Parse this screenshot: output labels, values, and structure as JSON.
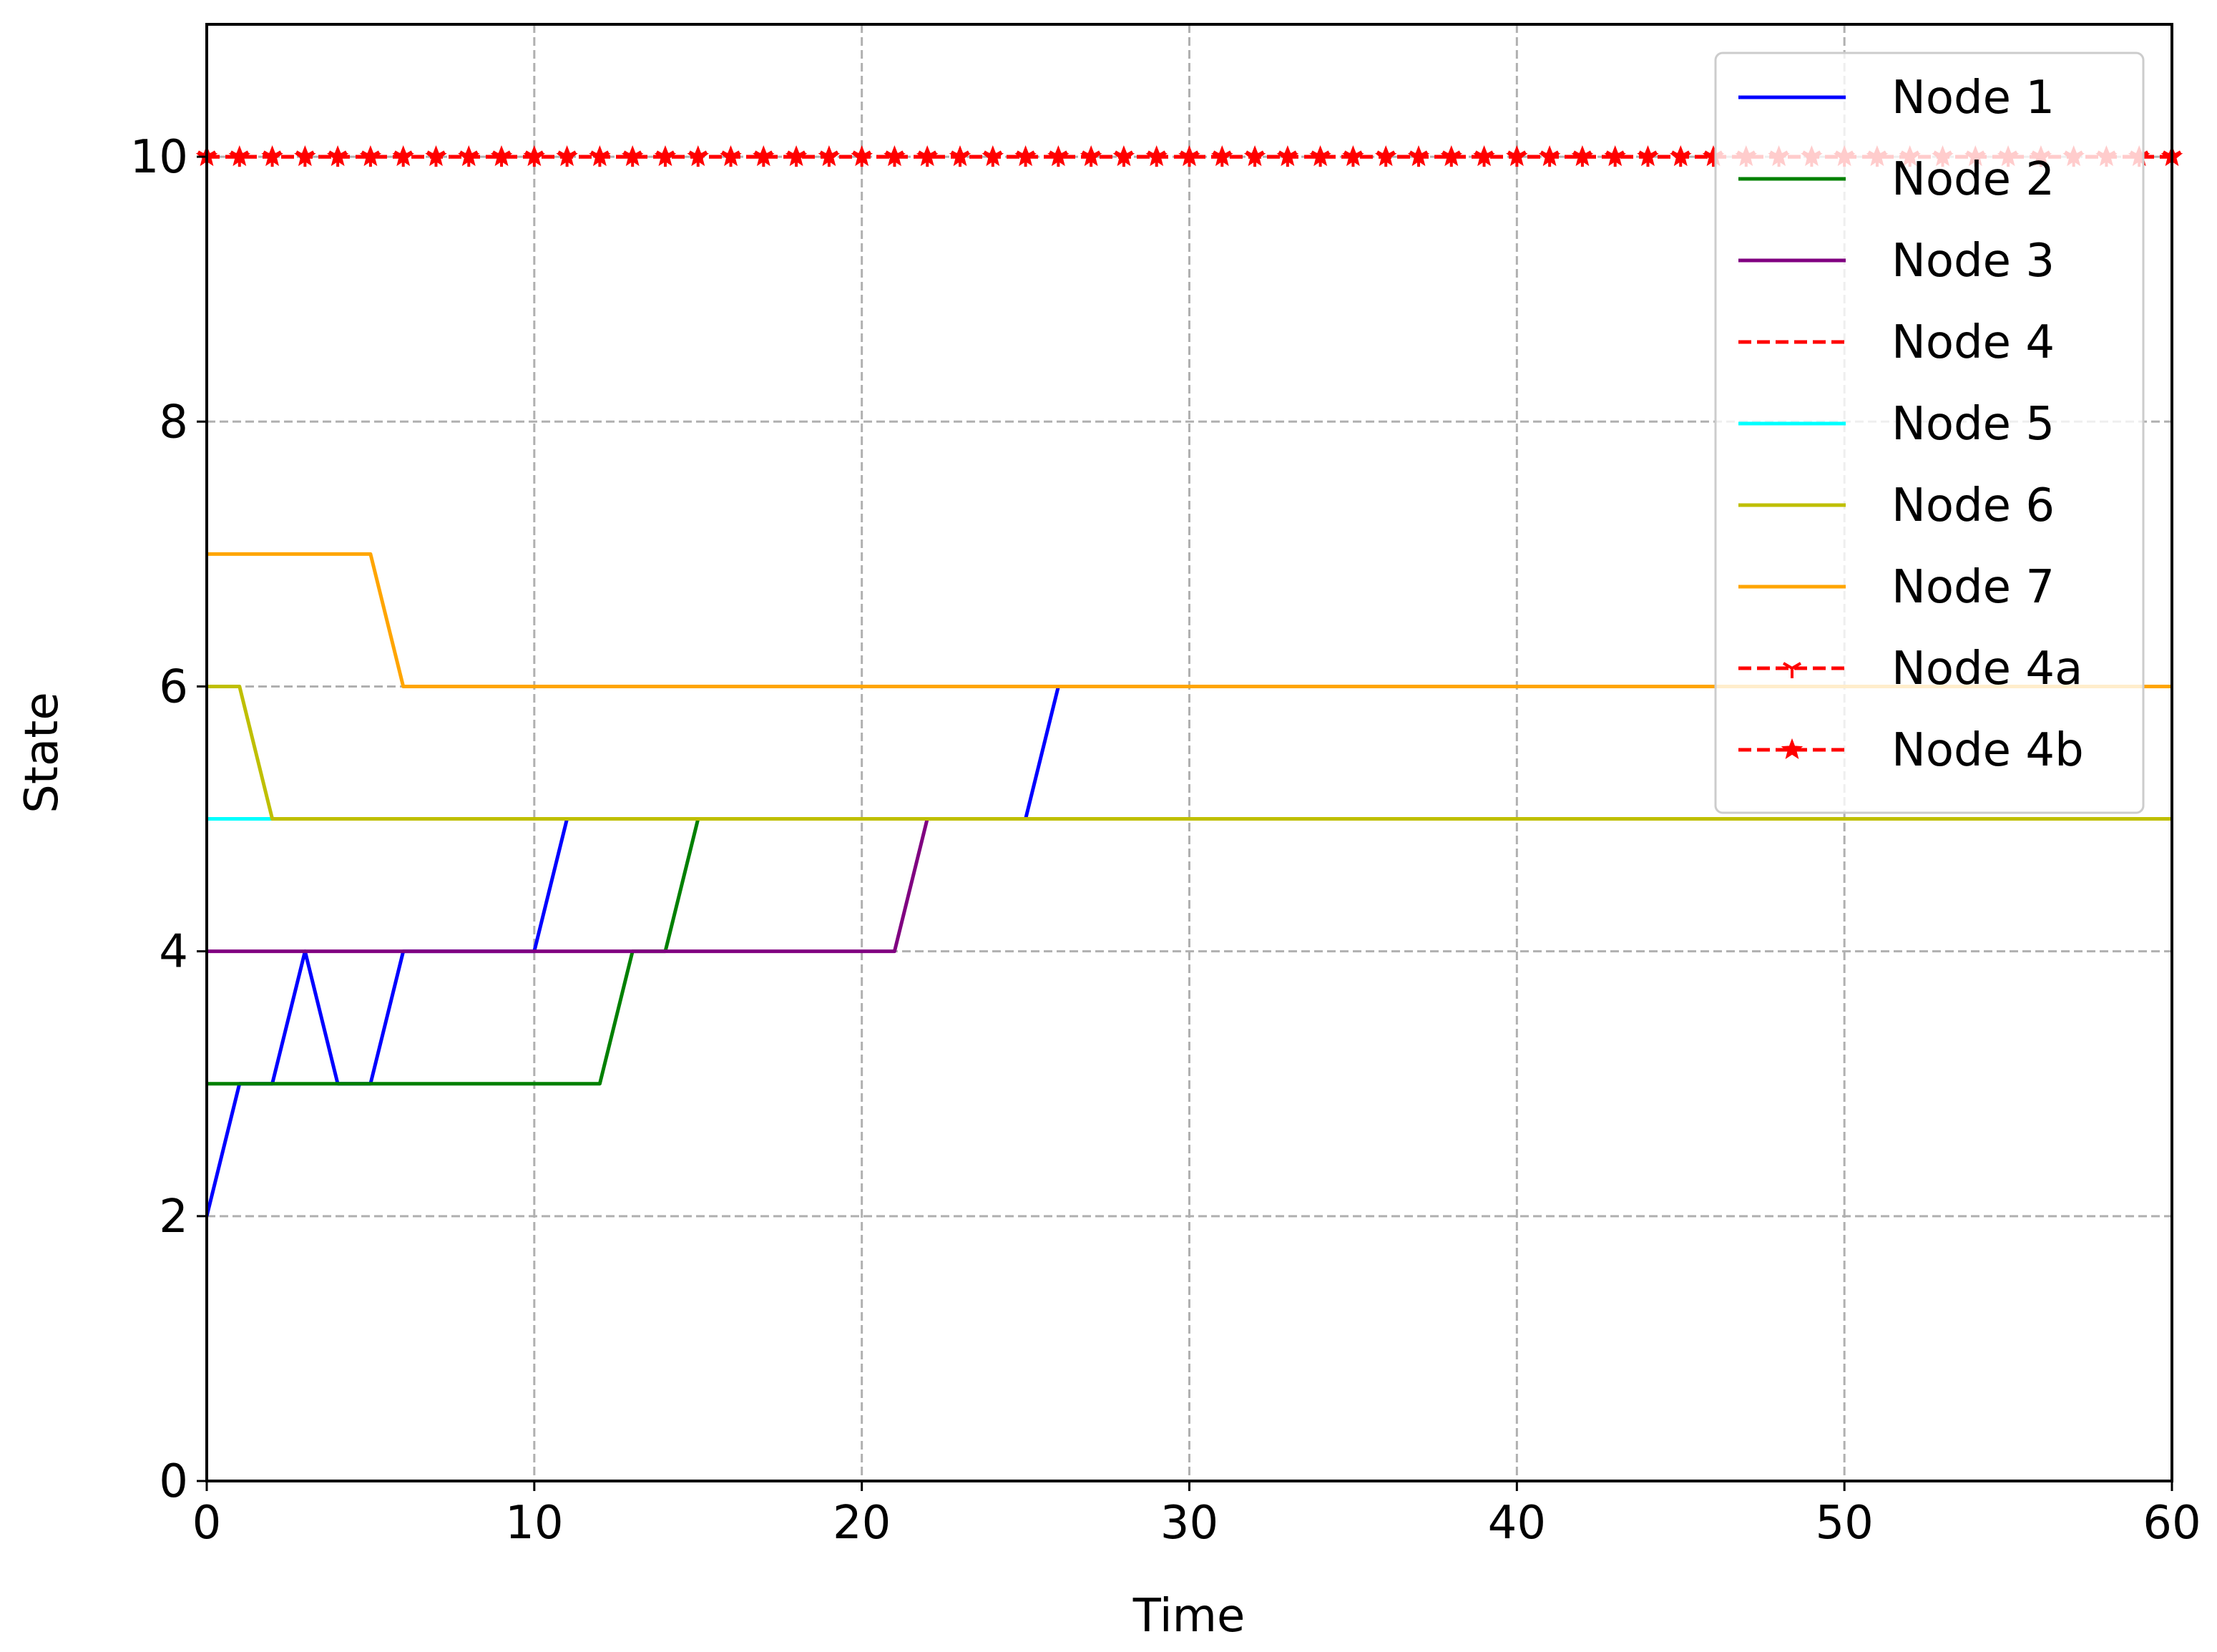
{
  "chart_data": {
    "type": "line",
    "xlabel": "Time",
    "ylabel": "State",
    "xlim": [
      0,
      60
    ],
    "ylim": [
      0,
      11
    ],
    "xticks": [
      0,
      10,
      20,
      30,
      40,
      50,
      60
    ],
    "yticks": [
      0,
      2,
      4,
      6,
      8,
      10
    ],
    "grid": true,
    "legend_position": "top-right",
    "series": [
      {
        "name": "Node 1",
        "color": "#0000ff",
        "style": "solid",
        "marker": "none",
        "x": [
          0,
          1,
          2,
          3,
          4,
          5,
          6,
          10,
          11,
          25,
          26,
          60
        ],
        "y": [
          2,
          3,
          3,
          4,
          3,
          3,
          4,
          4,
          5,
          5,
          6,
          6
        ]
      },
      {
        "name": "Node 2",
        "color": "#008000",
        "style": "solid",
        "marker": "none",
        "x": [
          0,
          12,
          13,
          14,
          15,
          60
        ],
        "y": [
          3,
          3,
          4,
          4,
          5,
          5
        ]
      },
      {
        "name": "Node 3",
        "color": "#800080",
        "style": "solid",
        "marker": "none",
        "x": [
          0,
          21,
          22,
          60
        ],
        "y": [
          4,
          4,
          5,
          5
        ]
      },
      {
        "name": "Node 4",
        "color": "#ff0000",
        "style": "dashed",
        "marker": "none",
        "x": [
          0,
          60
        ],
        "y": [
          10,
          10
        ]
      },
      {
        "name": "Node 5",
        "color": "#00ffff",
        "style": "solid",
        "marker": "none",
        "x": [
          0,
          60
        ],
        "y": [
          5,
          5
        ]
      },
      {
        "name": "Node 6",
        "color": "#bfbf00",
        "style": "solid",
        "marker": "none",
        "x": [
          0,
          1,
          2,
          60
        ],
        "y": [
          6,
          6,
          5,
          5
        ]
      },
      {
        "name": "Node 7",
        "color": "#ffa500",
        "style": "solid",
        "marker": "none",
        "x": [
          0,
          5,
          6,
          60
        ],
        "y": [
          7,
          7,
          6,
          6
        ]
      },
      {
        "name": "Node 4a",
        "color": "#ff0000",
        "style": "dashed",
        "marker": "tri",
        "x": "0..60",
        "y": 10
      },
      {
        "name": "Node 4b",
        "color": "#ff0000",
        "style": "dashed",
        "marker": "star",
        "x": "0..60",
        "y": 10
      }
    ]
  }
}
